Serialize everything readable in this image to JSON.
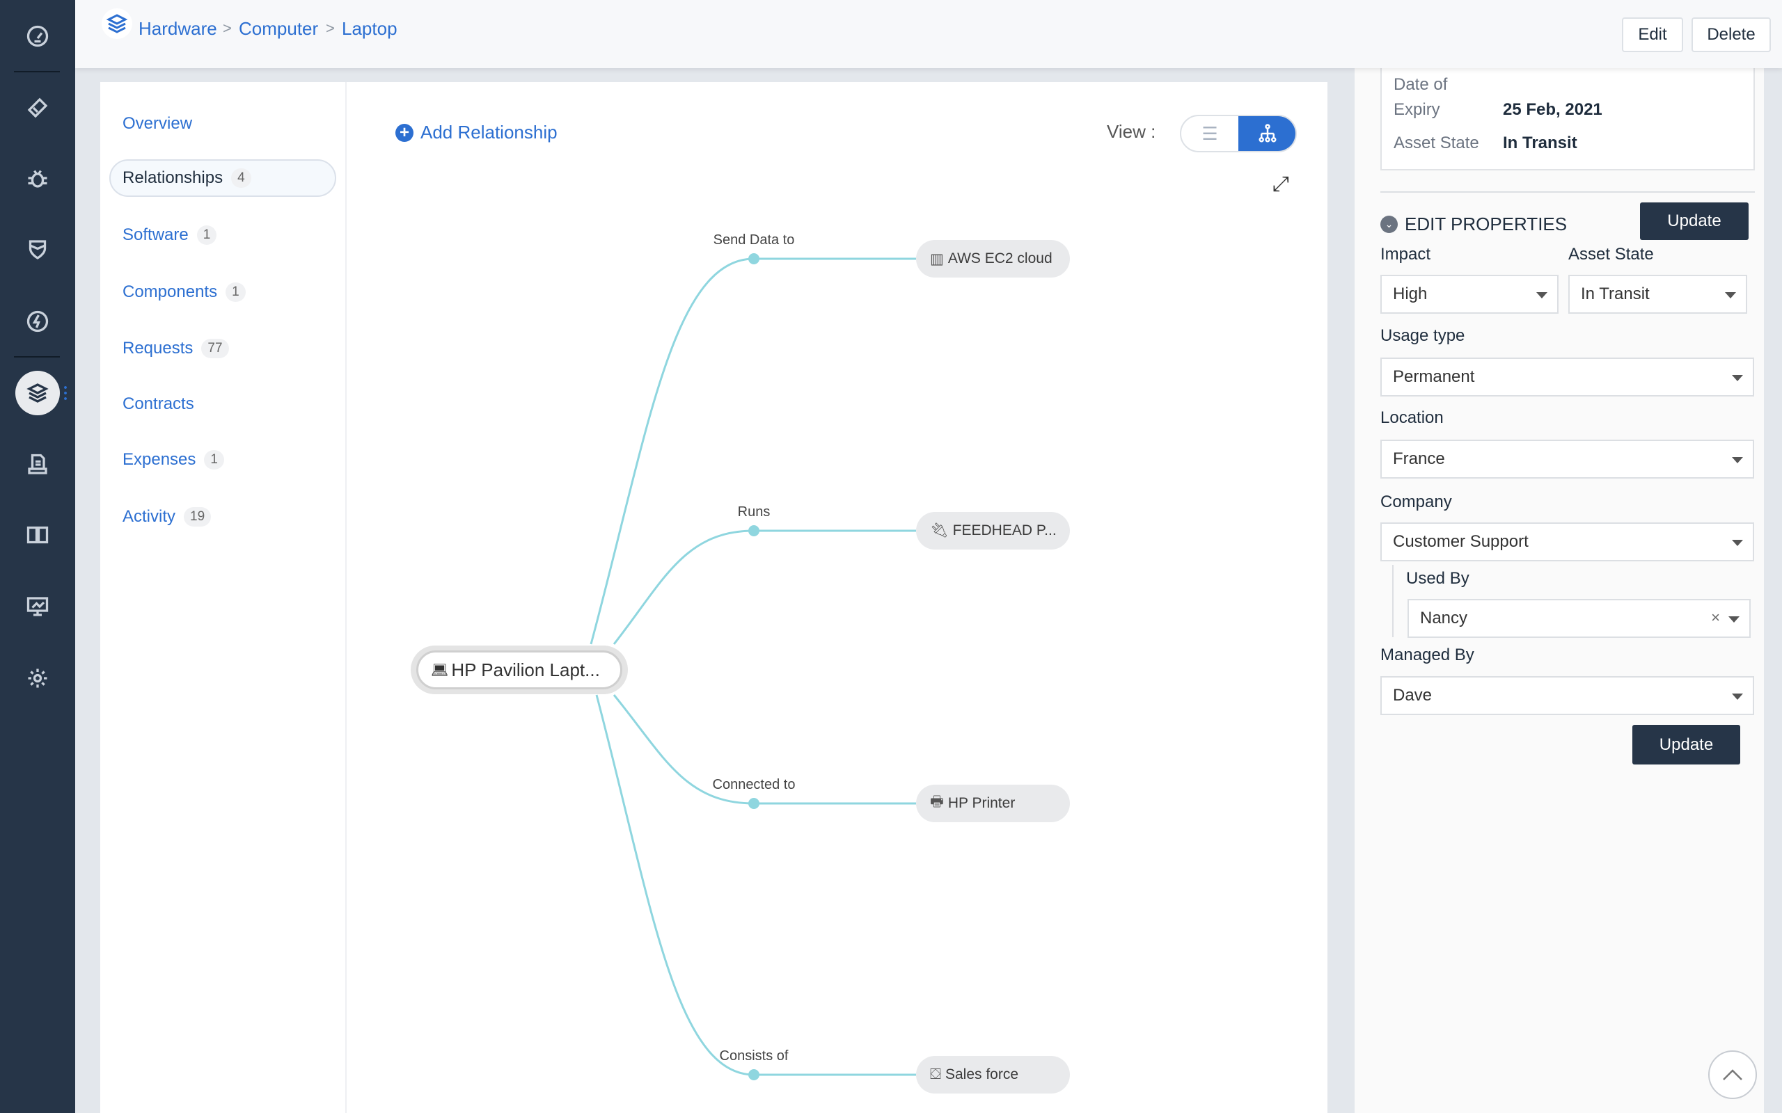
{
  "breadcrumb": [
    "Hardware",
    "Computer",
    "Laptop"
  ],
  "breadcrumb_separator": ">",
  "header": {
    "edit": "Edit",
    "delete": "Delete"
  },
  "rail_icons": [
    "dashboard-icon",
    "ticket-icon",
    "bug-icon",
    "shield-icon",
    "lightning-icon",
    "assets-layers-icon",
    "document-icon",
    "book-icon",
    "chart-icon",
    "settings-gear-icon"
  ],
  "nav": [
    {
      "label": "Overview",
      "count": null
    },
    {
      "label": "Relationships",
      "count": "4",
      "active": true
    },
    {
      "label": "Software",
      "count": "1"
    },
    {
      "label": "Components",
      "count": "1"
    },
    {
      "label": "Requests",
      "count": "77"
    },
    {
      "label": "Contracts",
      "count": null
    },
    {
      "label": "Expenses",
      "count": "1"
    },
    {
      "label": "Activity",
      "count": "19"
    }
  ],
  "toolbar": {
    "add_relationship": "Add Relationship",
    "view_label": "View :",
    "active_view": "tree"
  },
  "graph": {
    "root": "HP Pavilion Lapt...",
    "edges": [
      {
        "relation": "Send Data to",
        "target": "AWS EC2 cloud",
        "icon": "server-icon"
      },
      {
        "relation": "Runs",
        "target": "FEEDHEAD P...",
        "icon": "plug-icon"
      },
      {
        "relation": "Connected to",
        "target": "HP Printer",
        "icon": "printer-icon"
      },
      {
        "relation": "Consists of",
        "target": "Sales force",
        "icon": "component-icon"
      }
    ],
    "line_color": "#8fd6df"
  },
  "summary": {
    "expiry_label_1": "Date of",
    "expiry_label_2": "Expiry",
    "expiry_value": "25 Feb, 2021",
    "state_label": "Asset State",
    "state_value": "In Transit"
  },
  "props": {
    "title": "EDIT PROPERTIES",
    "update": "Update",
    "impact_label": "Impact",
    "impact": "High",
    "asset_state_label": "Asset State",
    "asset_state": "In Transit",
    "usage_label": "Usage type",
    "usage": "Permanent",
    "location_label": "Location",
    "location": "France",
    "company_label": "Company",
    "company": "Customer Support",
    "used_by_label": "Used By",
    "used_by": "Nancy",
    "managed_by_label": "Managed By",
    "managed_by": "Dave"
  },
  "colors": {
    "accent": "#2c6fd1",
    "rail": "#263548",
    "button_dark": "#263548"
  }
}
